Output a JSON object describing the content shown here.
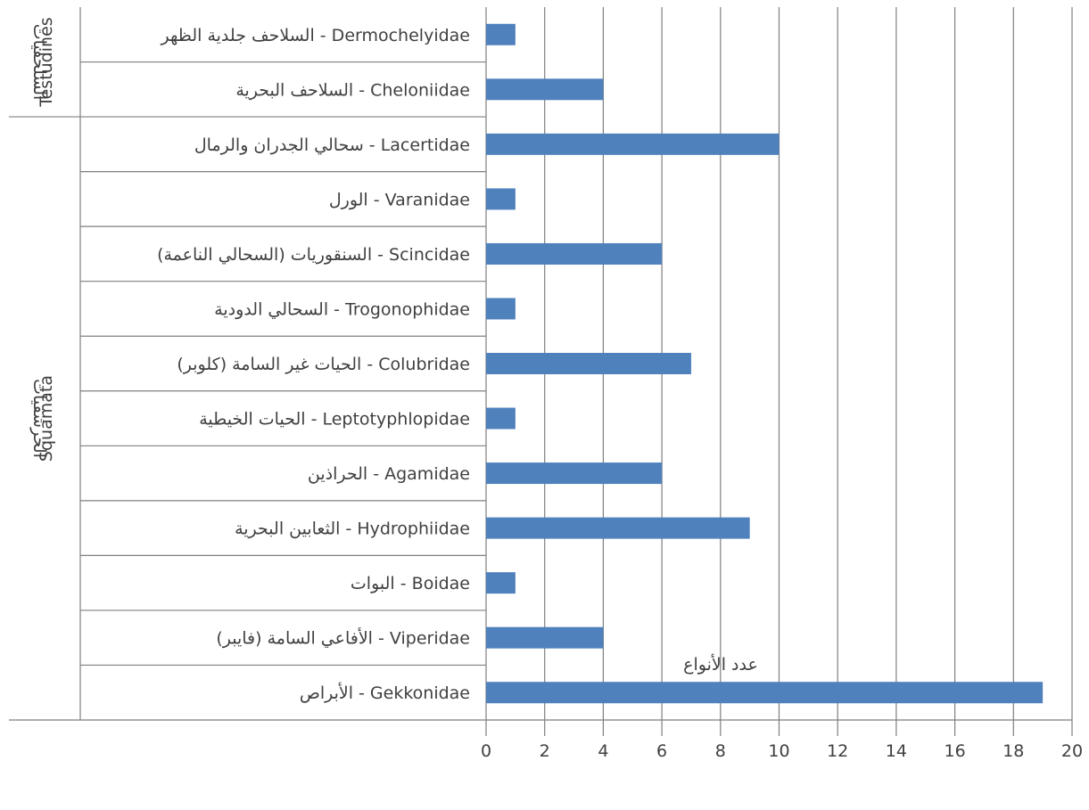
{
  "chart_data": {
    "type": "bar",
    "orientation": "horizontal",
    "title": "",
    "xlabel": "عدد الأنواع",
    "ylabel": "",
    "xlim": [
      0,
      20
    ],
    "xticks": [
      0,
      2,
      4,
      6,
      8,
      10,
      12,
      14,
      16,
      18,
      20
    ],
    "grid": true,
    "bar_color": "#4f81bd",
    "categories": [
      "السلاحف جلدية الظهر - Dermochelyidae",
      "السلاحف البحرية - Cheloniidae",
      "سحالي الجدران والرمال - Lacertidae",
      "الورل - Varanidae",
      "السنقوريات (السحالي الناعمة) - Scincidae",
      "السحالي الدودية - Trogonophidae",
      "الحيات غير السامة (كلوبر) - Colubridae",
      "الحيات الخيطية - Leptotyphlopidae",
      "الحراذين - Agamidae",
      "الثعابين البحرية - Hydrophiidae",
      "البوات - Boidae",
      "الأفاعي السامة (فايبر) - Viperidae",
      "الأبراص - Gekkonidae"
    ],
    "values": [
      1,
      4,
      10,
      1,
      6,
      1,
      7,
      1,
      6,
      9,
      1,
      4,
      19
    ],
    "groups": [
      {
        "name_ar": "السلحفيات",
        "name_en": "Testudines",
        "start": 0,
        "end": 1
      },
      {
        "name_ar": "الحرشفيات",
        "name_en": "Squamata",
        "start": 2,
        "end": 12
      }
    ]
  }
}
